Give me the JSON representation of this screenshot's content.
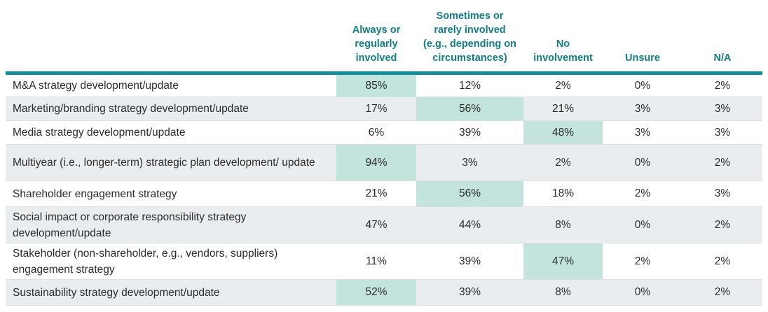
{
  "chart_data": {
    "type": "table",
    "columns": [
      "",
      "Always or regularly involved",
      "Sometimes or rarely involved (e.g., depending on circumstances)",
      "No involvement",
      "Unsure",
      "N/A"
    ],
    "column_lines": [
      [],
      [
        "Always or",
        "regularly",
        "involved"
      ],
      [
        "Sometimes or",
        "rarely involved",
        "(e.g., depending on",
        "circumstances)"
      ],
      [
        "No",
        "involvement"
      ],
      [
        "Unsure"
      ],
      [
        "N/A"
      ]
    ],
    "rows": [
      {
        "label": "M&A strategy development/update",
        "values": [
          "85%",
          "12%",
          "2%",
          "0%",
          "2%"
        ],
        "highlight": 0
      },
      {
        "label": "Marketing/branding strategy development/update",
        "values": [
          "17%",
          "56%",
          "21%",
          "3%",
          "3%"
        ],
        "highlight": 1
      },
      {
        "label": "Media strategy development/update",
        "values": [
          "6%",
          "39%",
          "48%",
          "3%",
          "3%"
        ],
        "highlight": 2
      },
      {
        "label": "Multiyear (i.e., longer-term) strategic plan development/ update",
        "values": [
          "94%",
          "3%",
          "2%",
          "0%",
          "2%"
        ],
        "highlight": 0
      },
      {
        "label": "Shareholder engagement strategy",
        "values": [
          "21%",
          "56%",
          "18%",
          "2%",
          "3%"
        ],
        "highlight": 1
      },
      {
        "label": "Social impact or corporate responsibility strategy development/update",
        "values": [
          "47%",
          "44%",
          "8%",
          "0%",
          "2%"
        ],
        "highlight": null
      },
      {
        "label": "Stakeholder (non-shareholder, e.g., vendors, suppliers) engagement strategy",
        "values": [
          "11%",
          "39%",
          "47%",
          "2%",
          "2%"
        ],
        "highlight": 2
      },
      {
        "label": "Sustainability strategy development/update",
        "values": [
          "52%",
          "39%",
          "8%",
          "0%",
          "2%"
        ],
        "highlight": 0
      }
    ],
    "colors": {
      "header_text": "#0f7f8a",
      "header_rule": "#0f8f9c",
      "highlight": "#c3e4dc",
      "row_alt": "#eaedf0"
    }
  }
}
